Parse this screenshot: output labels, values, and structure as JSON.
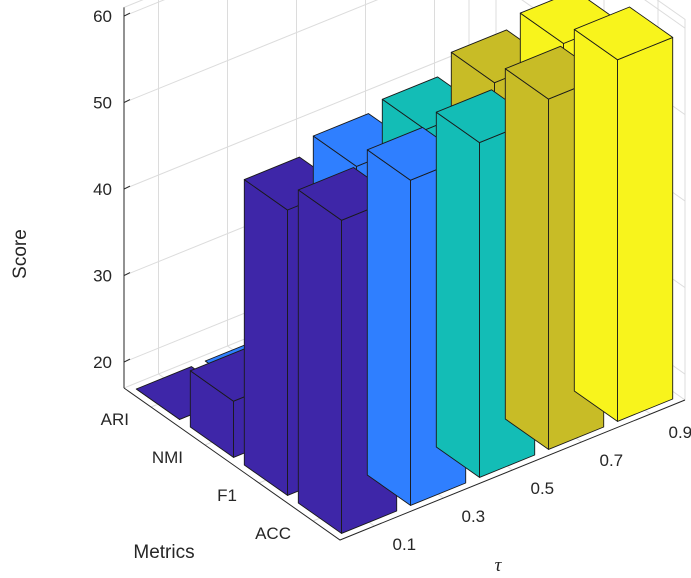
{
  "chart_data": {
    "type": "bar3d",
    "xlabel": "τ",
    "ylabel": "Metrics",
    "zlabel": "Score",
    "x": [
      "0.1",
      "0.3",
      "0.5",
      "0.7",
      "0.9"
    ],
    "metrics": [
      "ACC",
      "F1",
      "NMI",
      "ARI"
    ],
    "zlim": [
      17,
      61
    ],
    "zticks": [
      "20",
      "30",
      "40",
      "50",
      "60"
    ],
    "colors": [
      "#3e26a8",
      "#2f7fff",
      "#13bdb6",
      "#c8bc26",
      "#f8f41c"
    ],
    "series": [
      {
        "x": "0.1",
        "values": {
          "ACC": 53.2,
          "F1": 50.0,
          "NMI": 23.5,
          "ARI": 15.5
        }
      },
      {
        "x": "0.3",
        "values": {
          "ACC": 54.6,
          "F1": 51.8,
          "NMI": 24.5,
          "ARI": 16.8
        }
      },
      {
        "x": "0.5",
        "values": {
          "ACC": 55.7,
          "F1": 52.8,
          "NMI": 25.5,
          "ARI": 17.4
        }
      },
      {
        "x": "0.7",
        "values": {
          "ACC": 57.5,
          "F1": 55.0,
          "NMI": 27.6,
          "ARI": 18.9
        }
      },
      {
        "x": "0.9",
        "values": {
          "ACC": 58.8,
          "F1": 56.3,
          "NMI": 28.8,
          "ARI": 20.1
        }
      }
    ]
  }
}
